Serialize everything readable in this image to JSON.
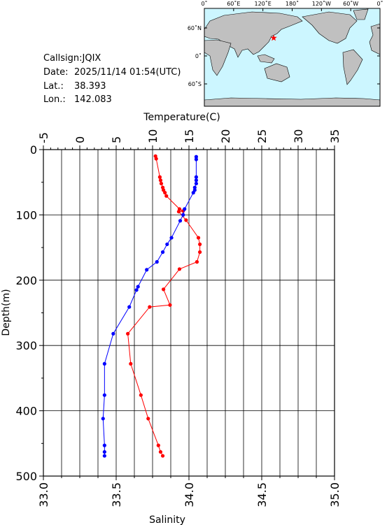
{
  "chart_data": {
    "type": "line",
    "xlabel_top": "Temperature(C)",
    "xlabel": "Salinity",
    "ylabel": "Depth(m)",
    "ylim": [
      0,
      500
    ],
    "y_inverted": true,
    "yticks": [
      0,
      100,
      200,
      300,
      400,
      500
    ],
    "xlim": [
      33,
      35
    ],
    "xticks": [
      {
        "value": 33,
        "label": "33.0"
      },
      {
        "value": 33.5,
        "label": "33.5"
      },
      {
        "value": 34,
        "label": "34.0"
      },
      {
        "value": 34.5,
        "label": "34.5"
      },
      {
        "value": 35,
        "label": "35.0"
      }
    ],
    "x2lim": [
      -5,
      35
    ],
    "x2ticks": [
      -5,
      0,
      5,
      10,
      15,
      20,
      25,
      30,
      35
    ],
    "grid": true,
    "series": [
      {
        "color": "#ff0000",
        "axis": "x2",
        "depths": [
          10,
          14,
          42,
          47,
          52,
          58,
          62,
          66,
          71,
          91,
          94,
          95,
          108,
          135,
          145,
          157,
          172,
          183,
          214,
          238,
          241,
          282,
          328,
          376,
          412,
          453,
          463,
          469
        ],
        "values": [
          10.4,
          10.5,
          11.0,
          11.1,
          11.2,
          11.4,
          11.5,
          11.7,
          11.9,
          13.7,
          14.2,
          13.6,
          14.6,
          16.3,
          16.5,
          16.5,
          16.1,
          13.7,
          11.5,
          12.4,
          9.6,
          6.6,
          7.0,
          8.4,
          9.4,
          10.8,
          11.1,
          11.4
        ]
      },
      {
        "color": "#0000ff",
        "axis": "x",
        "depths": [
          11,
          15,
          42,
          47,
          52,
          58,
          62,
          66,
          91,
          100,
          109,
          135,
          145,
          157,
          172,
          184,
          210,
          215,
          241,
          282,
          328,
          376,
          412,
          453,
          463,
          469
        ],
        "values": [
          34.05,
          34.05,
          34.05,
          34.05,
          34.05,
          34.04,
          34.04,
          34.03,
          33.97,
          33.96,
          33.94,
          33.88,
          33.85,
          33.82,
          33.78,
          33.71,
          33.65,
          33.64,
          33.59,
          33.48,
          33.42,
          33.42,
          33.41,
          33.42,
          33.42,
          33.42
        ]
      }
    ]
  },
  "info": {
    "callsign": "Callsign:JQIX",
    "date_label": "Date:",
    "date": "2025/11/14 01:54(UTC)",
    "lat_label": "Lat.:",
    "lat": 38.393,
    "lon_label": "Lon.:",
    "lon": 142.083
  },
  "map": {
    "lon_labels": [
      "0˚",
      "60˚E",
      "120˚E",
      "180˚",
      "120˚W",
      "60˚W",
      "0˚"
    ],
    "lat_labels": [
      "60˚N",
      "0˚",
      "60˚S"
    ],
    "marker_color": "#ff0000"
  }
}
